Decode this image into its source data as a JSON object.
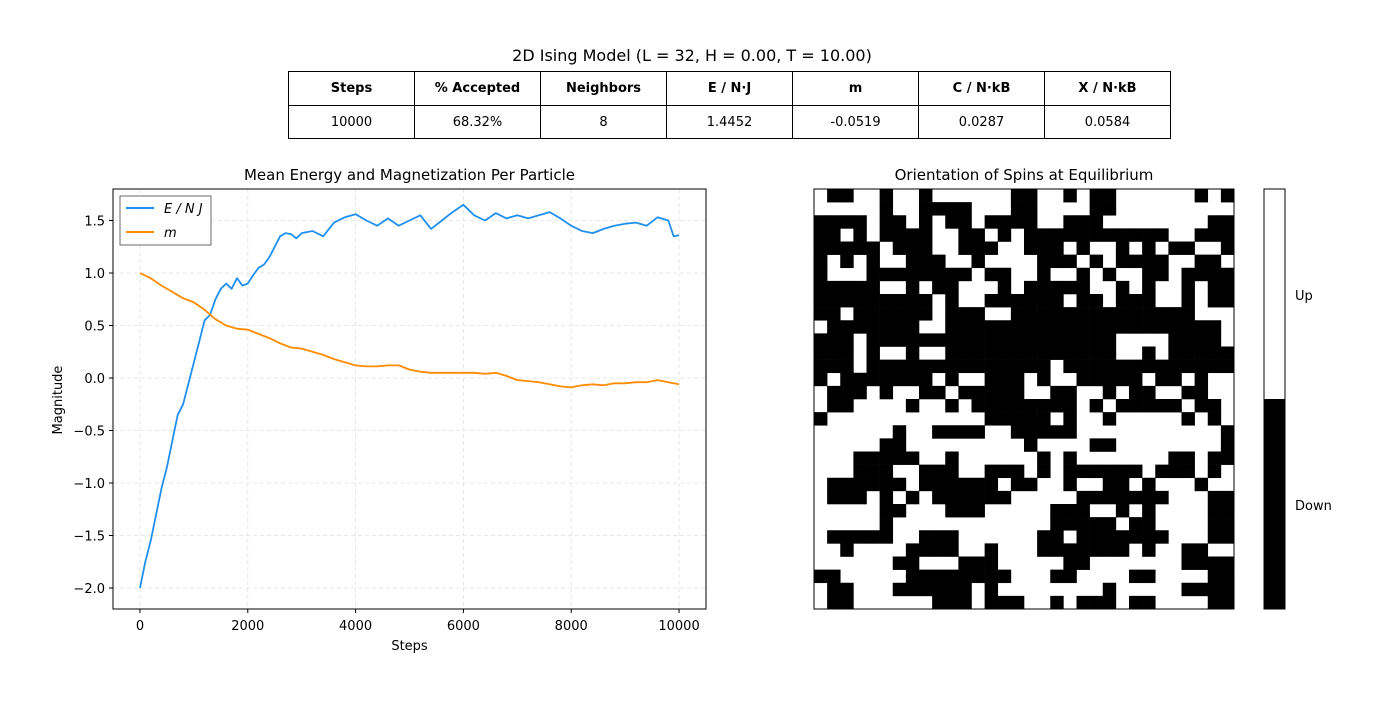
{
  "figure": {
    "title": "2D Ising Model (L = 32, H = 0.00, T = 10.00)"
  },
  "stats_table": {
    "headers": [
      "Steps",
      "% Accepted",
      "Neighbors",
      "E / N·J",
      "m",
      "C / N·kB",
      "X / N·kB"
    ],
    "values": [
      "10000",
      "68.32%",
      "8",
      "1.4452",
      "-0.0519",
      "0.0287",
      "0.0584"
    ]
  },
  "colors": {
    "energy": "#1f8ff0",
    "magnetization": "#ff8c00",
    "grid": "#e0e0e0"
  },
  "chart_data": [
    {
      "type": "line",
      "title": "Mean Energy and Magnetization Per Particle",
      "xlabel": "Steps",
      "ylabel": "Magnitude",
      "xlim": [
        -500,
        10500
      ],
      "ylim": [
        -2.2,
        1.8
      ],
      "xticks": [
        0,
        2000,
        4000,
        6000,
        8000,
        10000
      ],
      "yticks": [
        -2.0,
        -1.5,
        -1.0,
        -0.5,
        0.0,
        0.5,
        1.0,
        1.5
      ],
      "ytick_labels": [
        "−2.0",
        "−1.5",
        "−1.0",
        "−0.5",
        "0.0",
        "0.5",
        "1.0",
        "1.5"
      ],
      "grid": true,
      "legend_position": "top-left",
      "series": [
        {
          "name": "E / N J",
          "x": [
            0,
            100,
            200,
            300,
            400,
            500,
            600,
            700,
            800,
            900,
            1000,
            1100,
            1200,
            1300,
            1400,
            1500,
            1600,
            1700,
            1800,
            1900,
            2000,
            2100,
            2200,
            2300,
            2400,
            2500,
            2600,
            2700,
            2800,
            2900,
            3000,
            3200,
            3400,
            3600,
            3800,
            4000,
            4200,
            4400,
            4600,
            4800,
            5000,
            5200,
            5400,
            5600,
            5800,
            6000,
            6200,
            6400,
            6600,
            6800,
            7000,
            7200,
            7400,
            7600,
            7800,
            8000,
            8200,
            8400,
            8600,
            8800,
            9000,
            9200,
            9400,
            9600,
            9800,
            9900,
            10000
          ],
          "y": [
            -2.0,
            -1.75,
            -1.55,
            -1.3,
            -1.05,
            -0.85,
            -0.6,
            -0.35,
            -0.25,
            -0.05,
            0.15,
            0.35,
            0.55,
            0.6,
            0.75,
            0.85,
            0.9,
            0.85,
            0.95,
            0.88,
            0.9,
            0.98,
            1.05,
            1.08,
            1.15,
            1.25,
            1.35,
            1.38,
            1.37,
            1.33,
            1.38,
            1.4,
            1.35,
            1.48,
            1.53,
            1.56,
            1.5,
            1.45,
            1.52,
            1.45,
            1.5,
            1.55,
            1.42,
            1.5,
            1.58,
            1.65,
            1.55,
            1.5,
            1.57,
            1.52,
            1.55,
            1.52,
            1.55,
            1.58,
            1.52,
            1.45,
            1.4,
            1.38,
            1.42,
            1.45,
            1.47,
            1.48,
            1.45,
            1.53,
            1.5,
            1.35,
            1.36
          ]
        },
        {
          "name": "m",
          "x": [
            0,
            200,
            400,
            600,
            800,
            1000,
            1200,
            1400,
            1600,
            1800,
            2000,
            2200,
            2400,
            2600,
            2800,
            3000,
            3200,
            3400,
            3600,
            3800,
            4000,
            4200,
            4400,
            4600,
            4800,
            5000,
            5200,
            5400,
            5600,
            5800,
            6000,
            6200,
            6400,
            6600,
            6800,
            7000,
            7200,
            7400,
            7600,
            7800,
            8000,
            8200,
            8400,
            8600,
            8800,
            9000,
            9200,
            9400,
            9600,
            9800,
            10000
          ],
          "y": [
            1.0,
            0.95,
            0.88,
            0.82,
            0.76,
            0.72,
            0.65,
            0.56,
            0.5,
            0.47,
            0.46,
            0.42,
            0.38,
            0.33,
            0.29,
            0.28,
            0.25,
            0.22,
            0.18,
            0.15,
            0.12,
            0.11,
            0.11,
            0.12,
            0.12,
            0.08,
            0.06,
            0.05,
            0.05,
            0.05,
            0.05,
            0.05,
            0.04,
            0.05,
            0.02,
            -0.02,
            -0.03,
            -0.04,
            -0.06,
            -0.08,
            -0.09,
            -0.07,
            -0.06,
            -0.07,
            -0.05,
            -0.05,
            -0.04,
            -0.04,
            -0.02,
            -0.04,
            -0.06
          ]
        }
      ]
    },
    {
      "type": "heatmap",
      "title": "Orientation of Spins at Equilibrium",
      "colorbar_labels": [
        "Up",
        "Down"
      ],
      "colorbar_colors": [
        "#ffffff",
        "#000000"
      ],
      "legend_position": "right",
      "grid_size": 32,
      "rows": [
        "01100100100000011001011000000101",
        "00000100111100011000011000000000",
        "11110110101101111001110000000011",
        "11010111100110101111111111100111",
        "11111011100111001110100101011001",
        "10101001110010000111010111100110",
        "10001111111101100100101001101111",
        "11111001011000101111100101001011",
        "11111111101001111110110111001011",
        "11011111101110011111111111111000",
        "01111111001111111111111111111110",
        "11101111111111111111111000011110",
        "11101001001111111111111001011111",
        "11101111111111111101111111111111",
        "10111111101001110100111110110100",
        "01110100110111110011001011001100",
        "01100001001011111111010111110110",
        "10000000000001111101001000001010",
        "00000010011110011111000000000001",
        "00000110000000001000011000000001",
        "00011111001000000101000000011011",
        "00011100111001110101111110111010",
        "01111110111111011001001101000100",
        "01110101011111100000111111100011",
        "00000110001110000011100101000011",
        "00000100000000000011111011000011",
        "01111100111000000110111111100011",
        "00100001111001000111111101001100",
        "00000011000111000001100000001111",
        "11000001111111100011000011000011",
        "01100011111101000000001000001111",
        "01100000011101110010111011000011"
      ]
    }
  ]
}
